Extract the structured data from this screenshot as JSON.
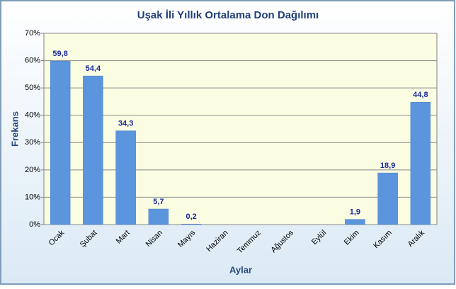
{
  "chart_data": {
    "type": "bar",
    "title": "Uşak İli Yıllık Ortalama Don Dağılımı",
    "x_label": "Aylar",
    "y_label": "Frekans",
    "categories": [
      "Ocak",
      "Şubat",
      "Mart",
      "Nisan",
      "Mayıs",
      "Haziran",
      "Temmuz",
      "Ağustos",
      "Eylül",
      "Ekim",
      "Kasım",
      "Aralık"
    ],
    "values": [
      59.8,
      54.4,
      34.3,
      5.7,
      0.2,
      null,
      null,
      null,
      null,
      1.9,
      18.9,
      44.8
    ],
    "value_labels": [
      "59,8",
      "54,4",
      "34,3",
      "5,7",
      "0,2",
      null,
      null,
      null,
      null,
      "1,9",
      "18,9",
      "44,8"
    ],
    "color": "#5b95dd",
    "ylim": [
      0,
      70
    ],
    "yticks": [
      {
        "value": 0,
        "label": "0%"
      },
      {
        "value": 10,
        "label": "10%"
      },
      {
        "value": 20,
        "label": "20%"
      },
      {
        "value": 30,
        "label": "30%"
      },
      {
        "value": 40,
        "label": "40%"
      },
      {
        "value": 50,
        "label": "50%"
      },
      {
        "value": 60,
        "label": "60%"
      },
      {
        "value": 70,
        "label": "70%"
      }
    ],
    "grid": true
  }
}
